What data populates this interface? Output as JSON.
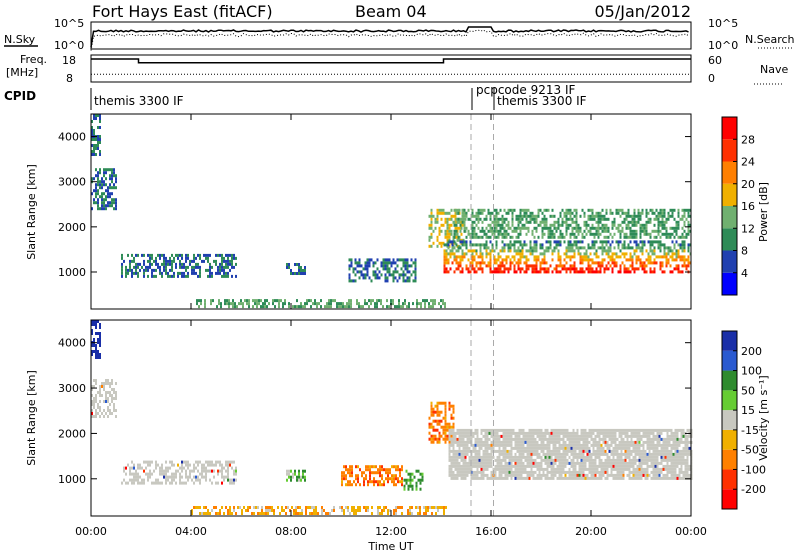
{
  "header": {
    "radar": "Fort Hays East (fitACF)",
    "beam": "Beam 04",
    "date": "05/Jan/2012"
  },
  "noise_panel": {
    "left_label": "N.Sky",
    "left_ticks": [
      "10^5",
      "10^0"
    ],
    "right_label": "N.Search",
    "right_ticks": [
      "10^5",
      "10^0"
    ]
  },
  "freq_panel": {
    "left_label_1": "Freq.",
    "left_label_2": "[MHz]",
    "left_ticks": [
      "18",
      "8"
    ],
    "right_label": "Nave",
    "right_ticks": [
      "60",
      "0"
    ]
  },
  "cpid_panel": {
    "label": "CPID",
    "entries": [
      "themis 3300 IF",
      "pcpcode 9213 IF",
      "themis 3300 IF"
    ]
  },
  "power_panel": {
    "ylabel": "Slant Range [km]",
    "yticks": [
      "4000",
      "3000",
      "2000",
      "1000"
    ],
    "colorbar_label": "Power [dB]",
    "colorbar_ticks": [
      "28",
      "24",
      "20",
      "16",
      "12",
      "8",
      "4"
    ],
    "colors": [
      "#0000ff",
      "#2040b0",
      "#2e8b57",
      "#70b070",
      "#f0b000",
      "#ff7f00",
      "#ff3000",
      "#ff0000"
    ]
  },
  "velocity_panel": {
    "ylabel": "Slant Range [km]",
    "yticks": [
      "4000",
      "3000",
      "2000",
      "1000"
    ],
    "colorbar_label": "Velocity [m s⁻¹]",
    "colorbar_ticks": [
      "200",
      "100",
      "50",
      "15",
      "-15",
      "-50",
      "-100",
      "-200"
    ],
    "colors": [
      "#1a2fa8",
      "#2a5ad0",
      "#2e8b2e",
      "#66cc33",
      "#c8c8c0",
      "#f0b000",
      "#ff8000",
      "#ff3000",
      "#ff0000"
    ]
  },
  "xaxis": {
    "label": "Time UT",
    "ticks": [
      "00:00",
      "04:00",
      "08:00",
      "12:00",
      "16:00",
      "20:00",
      "00:00"
    ]
  },
  "chart_data": {
    "type": "heatmap",
    "x_unit": "hours UT",
    "xlim": [
      0,
      24
    ],
    "ylim_km": [
      180,
      4500
    ],
    "cpid_changes_hours": [
      0.0,
      15.2,
      16.1
    ],
    "frequency_steps": [
      {
        "from": 0.0,
        "to": 1.9,
        "mhz": 18
      },
      {
        "from": 1.9,
        "to": 14.1,
        "mhz": 16
      },
      {
        "from": 14.1,
        "to": 24.0,
        "mhz": 18
      }
    ],
    "nave_approx": 12,
    "power_regions": [
      {
        "t0": 0.0,
        "t1": 0.4,
        "r0": 3600,
        "r1": 4500,
        "db": 8
      },
      {
        "t0": 0.0,
        "t1": 1.0,
        "r0": 2400,
        "r1": 3300,
        "db": 8
      },
      {
        "t0": 1.2,
        "t1": 5.8,
        "r0": 900,
        "r1": 1400,
        "db": 8
      },
      {
        "t0": 7.8,
        "t1": 8.6,
        "r0": 1000,
        "r1": 1200,
        "db": 8
      },
      {
        "t0": 10.3,
        "t1": 13.0,
        "r0": 800,
        "r1": 1300,
        "db": 8
      },
      {
        "t0": 4.2,
        "t1": 14.2,
        "r0": 250,
        "r1": 400,
        "db": 12
      },
      {
        "t0": 13.5,
        "t1": 15.0,
        "r0": 1600,
        "r1": 2400,
        "db": 16
      },
      {
        "t0": 14.1,
        "t1": 24.0,
        "r0": 1000,
        "r1": 1700,
        "db": 28
      },
      {
        "t0": 14.5,
        "t1": 24.0,
        "r0": 1800,
        "r1": 2400,
        "db": 12
      }
    ],
    "velocity_regions": [
      {
        "t0": 0.0,
        "t1": 0.4,
        "r0": 3700,
        "r1": 4500,
        "ms": 200
      },
      {
        "t0": 0.0,
        "t1": 1.0,
        "r0": 2400,
        "r1": 3200,
        "ms": 0
      },
      {
        "t0": 1.2,
        "t1": 5.8,
        "r0": 900,
        "r1": 1400,
        "ms": 0
      },
      {
        "t0": 7.8,
        "t1": 8.6,
        "r0": 1000,
        "r1": 1200,
        "ms": 30
      },
      {
        "t0": 10.0,
        "t1": 12.4,
        "r0": 900,
        "r1": 1300,
        "ms": -60
      },
      {
        "t0": 12.5,
        "t1": 13.3,
        "r0": 800,
        "r1": 1200,
        "ms": 40
      },
      {
        "t0": 4.0,
        "t1": 14.2,
        "r0": 250,
        "r1": 400,
        "ms": -30
      },
      {
        "t0": 13.5,
        "t1": 14.5,
        "r0": 1800,
        "r1": 2700,
        "ms": -60
      },
      {
        "t0": 14.3,
        "t1": 24.0,
        "r0": 1000,
        "r1": 2100,
        "ms": 0
      }
    ]
  }
}
